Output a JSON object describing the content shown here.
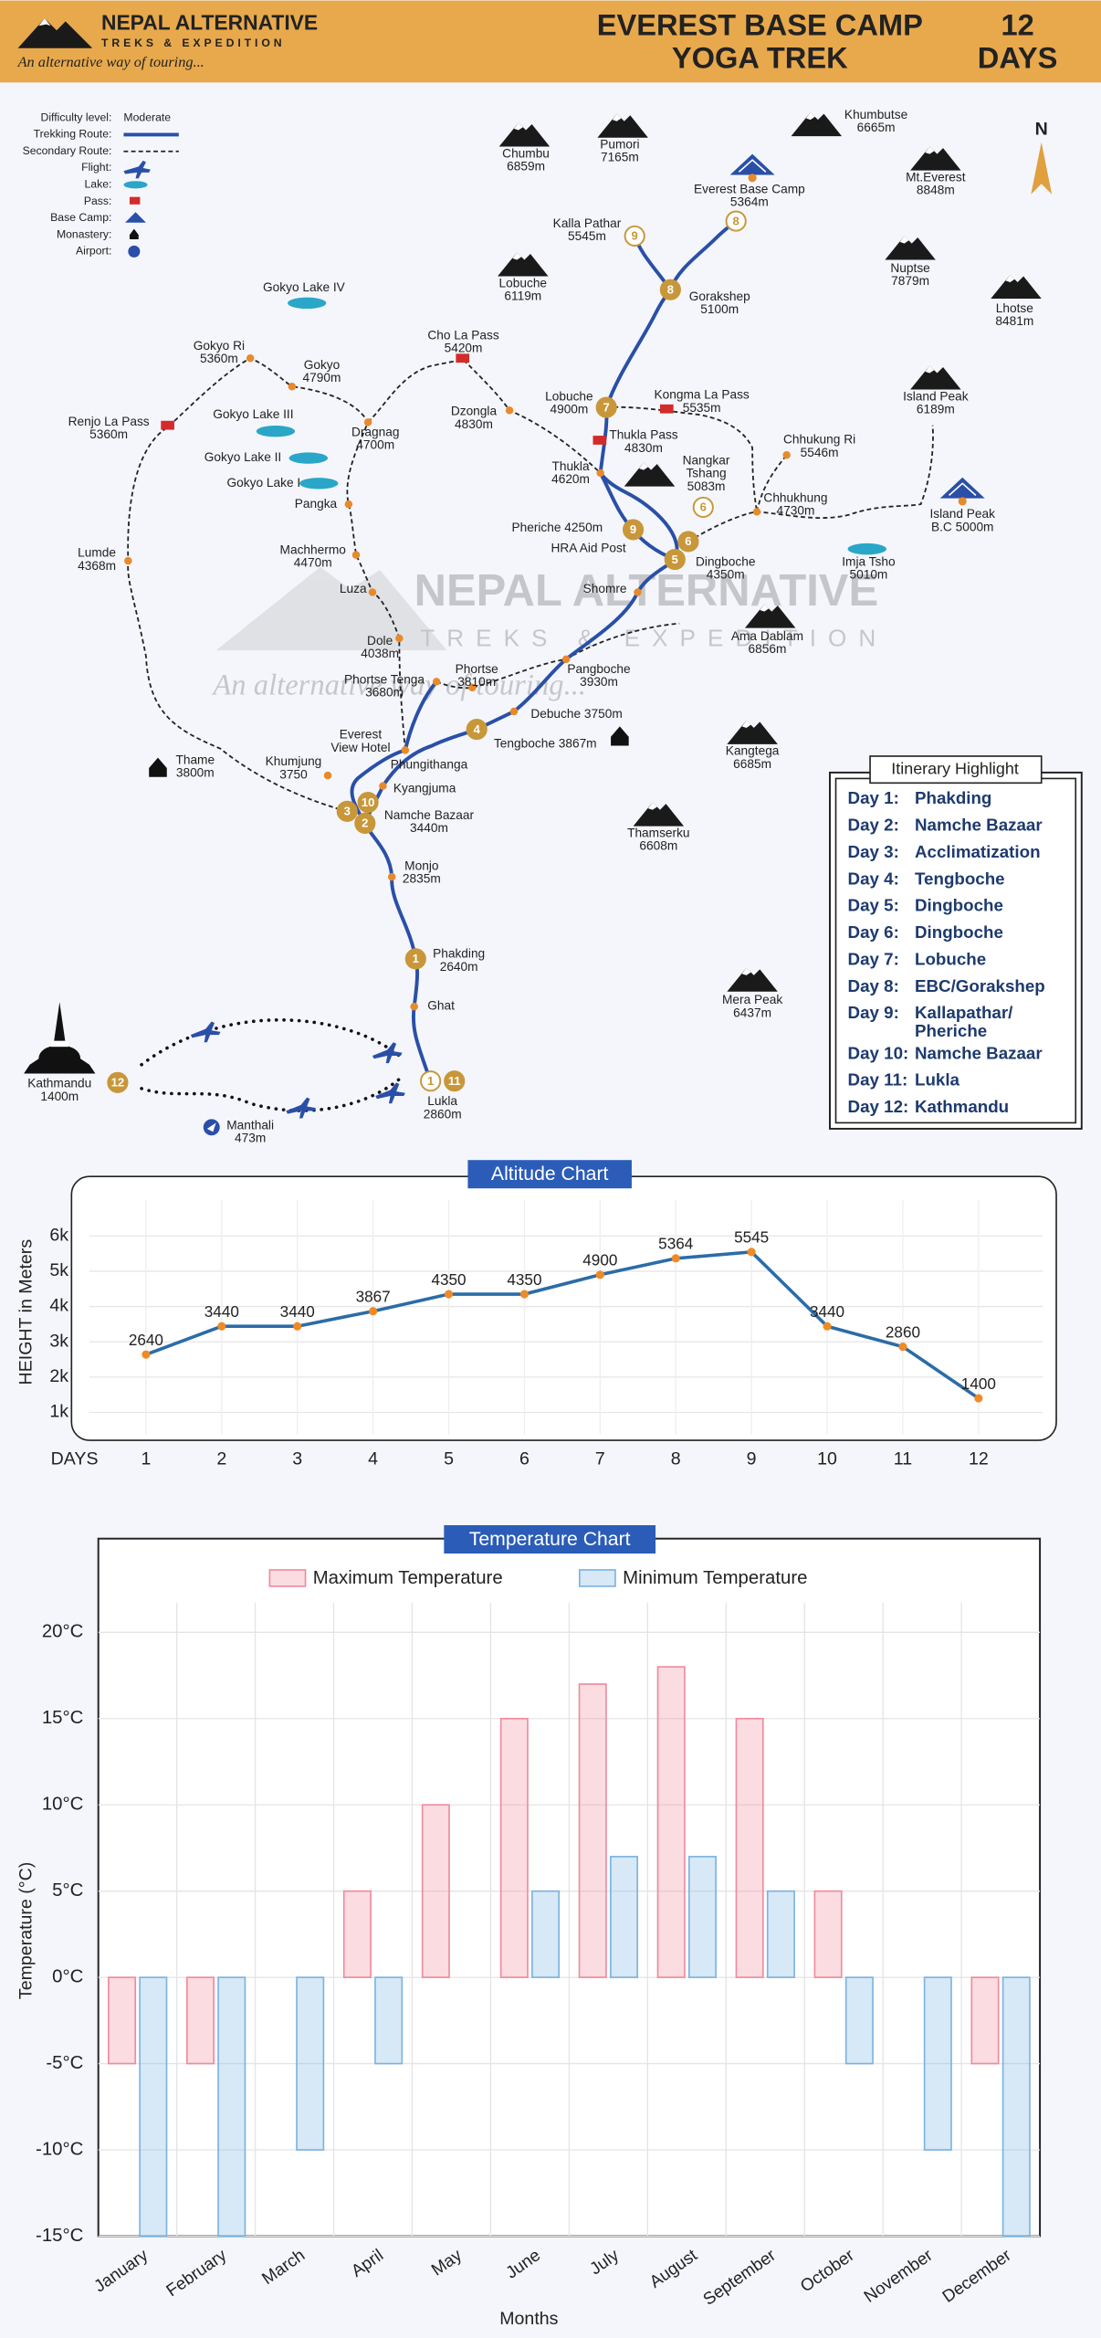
{
  "header": {
    "brand": "NEPAL ALTERNATIVE",
    "sub": "TREKS & EXPEDITION",
    "tagline": "An alternative way of touring...",
    "title": [
      "EVEREST BASE CAMP",
      "YOGA TREK"
    ],
    "days": [
      "12",
      "DAYS"
    ]
  },
  "map": {
    "legend": {
      "title": "Difficulty level:",
      "level": "Moderate",
      "items": [
        "Trekking Route:",
        "Secondary Route:",
        "Flight:",
        "Lake:",
        "Pass:",
        "Base Camp:",
        "Monastery:",
        "Airport:"
      ]
    },
    "north": "N",
    "watermark": {
      "brand": "NEPAL ALTERNATIVE",
      "sub": "TREKS & EXPEDITION",
      "tagline": "An alternative way of touring..."
    },
    "places": [
      {
        "lines": [
          "Chumbu",
          "6859m"
        ]
      },
      {
        "lines": [
          "Pumori",
          "7165m"
        ]
      },
      {
        "lines": [
          "Khumbutse",
          "6665m"
        ]
      },
      {
        "lines": [
          "Everest Base Camp",
          "5364m"
        ]
      },
      {
        "lines": [
          "Mt.Everest",
          "8848m"
        ]
      },
      {
        "lines": [
          "Nuptse",
          "7879m"
        ]
      },
      {
        "lines": [
          "Lhotse",
          "8481m"
        ]
      },
      {
        "lines": [
          "Lobuche",
          "6119m"
        ]
      },
      {
        "lines": [
          "Island Peak",
          "6189m"
        ]
      },
      {
        "lines": [
          "Island Peak",
          "B.C 5000m"
        ]
      },
      {
        "lines": [
          "Nangkar",
          "Tshang",
          "5083m"
        ]
      },
      {
        "lines": [
          "Ama Dablam",
          "6856m"
        ]
      },
      {
        "lines": [
          "Kangtega",
          "6685m"
        ]
      },
      {
        "lines": [
          "Thamserku",
          "6608m"
        ]
      },
      {
        "lines": [
          "Mera Peak",
          "6437m"
        ]
      },
      {
        "lines": [
          "Kalla Pathar",
          "5545m"
        ]
      },
      {
        "lines": [
          "Gorakshep",
          "5100m"
        ]
      },
      {
        "lines": [
          "Lobuche",
          "4900m"
        ]
      },
      {
        "lines": [
          "Kongma La Pass",
          "5535m"
        ]
      },
      {
        "lines": [
          "Thukla Pass",
          "4830m"
        ]
      },
      {
        "lines": [
          "Thukla",
          "4620m"
        ]
      },
      {
        "lines": [
          "Chhukung Ri",
          "5546m"
        ]
      },
      {
        "lines": [
          "Chhukhung",
          "4730m"
        ]
      },
      {
        "lines": [
          "Pheriche 4250m"
        ]
      },
      {
        "lines": [
          "HRA Aid Post"
        ]
      },
      {
        "lines": [
          "Dingboche",
          "4350m"
        ]
      },
      {
        "lines": [
          "Imja Tsho",
          "5010m"
        ]
      },
      {
        "lines": [
          "Shomre"
        ]
      },
      {
        "lines": [
          "Pangboche",
          "3930m"
        ]
      },
      {
        "lines": [
          "Debuche 3750m"
        ]
      },
      {
        "lines": [
          "Tengboche 3867m"
        ]
      },
      {
        "lines": [
          "Phortse",
          "3810m"
        ]
      },
      {
        "lines": [
          "Phortse Tenga",
          "3680m"
        ]
      },
      {
        "lines": [
          "Dole",
          "4038m"
        ]
      },
      {
        "lines": [
          "Luza"
        ]
      },
      {
        "lines": [
          "Machhermo",
          "4470m"
        ]
      },
      {
        "lines": [
          "Pangka"
        ]
      },
      {
        "lines": [
          "Gokyo Lake I"
        ]
      },
      {
        "lines": [
          "Gokyo Lake II"
        ]
      },
      {
        "lines": [
          "Gokyo Lake III"
        ]
      },
      {
        "lines": [
          "Gokyo Lake IV"
        ]
      },
      {
        "lines": [
          "Gokyo Ri",
          "5360m"
        ]
      },
      {
        "lines": [
          "Gokyo",
          "4790m"
        ]
      },
      {
        "lines": [
          "Dragnag",
          "4700m"
        ]
      },
      {
        "lines": [
          "Cho La Pass",
          "5420m"
        ]
      },
      {
        "lines": [
          "Dzongla",
          "4830m"
        ]
      },
      {
        "lines": [
          "Renjo La Pass",
          "5360m"
        ]
      },
      {
        "lines": [
          "Lumde",
          "4368m"
        ]
      },
      {
        "lines": [
          "Thame",
          "3800m"
        ]
      },
      {
        "lines": [
          "Khumjung",
          "3750"
        ]
      },
      {
        "lines": [
          "Everest",
          "View Hotel"
        ]
      },
      {
        "lines": [
          "Phungithanga"
        ]
      },
      {
        "lines": [
          "Kyangjuma"
        ]
      },
      {
        "lines": [
          "Namche Bazaar",
          "3440m"
        ]
      },
      {
        "lines": [
          "Monjo",
          "2835m"
        ]
      },
      {
        "lines": [
          "Phakding",
          "2640m"
        ]
      },
      {
        "lines": [
          "Ghat"
        ]
      },
      {
        "lines": [
          "Lukla",
          "2860m"
        ]
      },
      {
        "lines": [
          "Manthali",
          "473m"
        ]
      },
      {
        "lines": [
          "Kathmandu",
          "1400m"
        ]
      }
    ],
    "markers": [
      "9",
      "8",
      "8",
      "7",
      "6",
      "9",
      "6",
      "5",
      "4",
      "10",
      "3",
      "2",
      "1",
      "1",
      "11",
      "12"
    ]
  },
  "itinerary": {
    "title": "Itinerary Highlight",
    "rows": [
      [
        "Day 1:",
        "Phakding"
      ],
      [
        "Day 2:",
        "Namche Bazaar"
      ],
      [
        "Day 3:",
        "Acclimatization"
      ],
      [
        "Day 4:",
        "Tengboche"
      ],
      [
        "Day 5:",
        "Dingboche"
      ],
      [
        "Day 6:",
        "Dingboche"
      ],
      [
        "Day 7:",
        "Lobuche"
      ],
      [
        "Day 8:",
        "EBC/Gorakshep"
      ],
      [
        "Day 9:",
        "Kallapathar/",
        "Pheriche"
      ],
      [
        "Day 10:",
        "Namche Bazaar"
      ],
      [
        "Day 11:",
        "Lukla"
      ],
      [
        "Day 12:",
        "Kathmandu"
      ]
    ]
  },
  "chart_data": [
    {
      "type": "line",
      "title": "Altitude Chart",
      "y_label": "HEIGHT in Meters",
      "x_label": "DAYS",
      "categories": [
        "1",
        "2",
        "3",
        "4",
        "5",
        "6",
        "7",
        "8",
        "9",
        "10",
        "11",
        "12"
      ],
      "values": [
        2640,
        3440,
        3440,
        3867,
        4350,
        4350,
        4900,
        5364,
        5545,
        3440,
        2860,
        1400
      ],
      "ylim": [
        0,
        7600
      ],
      "yticks": [
        {
          "value": 1000,
          "label": "1k"
        },
        {
          "value": 2000,
          "label": "2k"
        },
        {
          "value": 3000,
          "label": "3k"
        },
        {
          "value": 4000,
          "label": "4k"
        },
        {
          "value": 5000,
          "label": "5k"
        },
        {
          "value": 6000,
          "label": "6k"
        }
      ],
      "color": "#2b6ca8",
      "marker_color": "#f08a24",
      "grid": true
    },
    {
      "type": "bar",
      "title": "Temperature Chart",
      "y_label": "Temperature (°C)",
      "x_label": "Months",
      "categories": [
        "January",
        "February",
        "March",
        "April",
        "May",
        "June",
        "July",
        "August",
        "September",
        "October",
        "November",
        "December"
      ],
      "series": [
        {
          "name": "Maximum Temperature",
          "color": "#f08a9c",
          "values": [
            -5,
            -5,
            0,
            5,
            10,
            15,
            17,
            18,
            15,
            5,
            0,
            -5
          ]
        },
        {
          "name": "Minimum Temperature",
          "color": "#7ab3e0",
          "values": [
            -15,
            -15,
            -10,
            -5,
            0,
            5,
            7,
            7,
            5,
            -5,
            -10,
            -15
          ]
        }
      ],
      "ylim": [
        -15,
        25
      ],
      "yticks": [
        {
          "value": -15,
          "label": "-15°C"
        },
        {
          "value": -10,
          "label": "-10°C"
        },
        {
          "value": -5,
          "label": "-5°C"
        },
        {
          "value": 0,
          "label": "0°C"
        },
        {
          "value": 5,
          "label": "5°C"
        },
        {
          "value": 10,
          "label": "10°C"
        },
        {
          "value": 15,
          "label": "15°C"
        },
        {
          "value": 20,
          "label": "20°C"
        }
      ],
      "grid": true,
      "legend": "top"
    }
  ]
}
